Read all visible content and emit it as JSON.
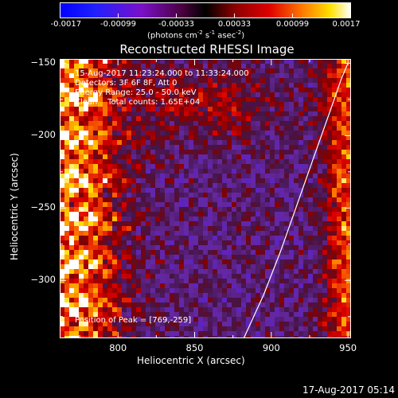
{
  "chart_data": {
    "type": "heatmap",
    "title": "Reconstructed RHESSI Image",
    "xlabel": "Heliocentric X (arcsec)",
    "ylabel": "Heliocentric Y (arcsec)",
    "xlim": [
      762,
      952
    ],
    "ylim": [
      -340,
      -147
    ],
    "xticks": [
      800,
      850,
      900,
      950
    ],
    "yticks": [
      -150,
      -200,
      -250,
      -300
    ],
    "info_lines": [
      "15-Aug-2017 11:23:24.000 to 11:33:24.000",
      "Detectors: 3F 6F 8F, Att 0",
      "Energy Range: 25.0 - 50.0 keV",
      "Clean    Total counts: 1.65E+04"
    ],
    "peak_label": "Position of Peak = [769,-259]",
    "peak": [
      769,
      -259
    ],
    "colorbar": {
      "min": -0.0017,
      "max": 0.0017,
      "ticks": [
        "-0.0017",
        "-0.00099",
        "-0.00033",
        "0.00033",
        "0.00099",
        "0.0017"
      ],
      "label_parts": {
        "pre": "(photons cm",
        "sup1": "-2",
        "mid1": " s",
        "sup2": "-1",
        "mid2": " asec",
        "sup3": "-2",
        "post": ")"
      }
    },
    "limb_curve": [
      [
        882,
        -340
      ],
      [
        895,
        -310
      ],
      [
        906,
        -280
      ],
      [
        916,
        -250
      ],
      [
        926,
        -220
      ],
      [
        936,
        -190
      ],
      [
        946,
        -160
      ],
      [
        950,
        -150
      ]
    ],
    "grid": false
  },
  "footer_timestamp": "17-Aug-2017 05:14"
}
